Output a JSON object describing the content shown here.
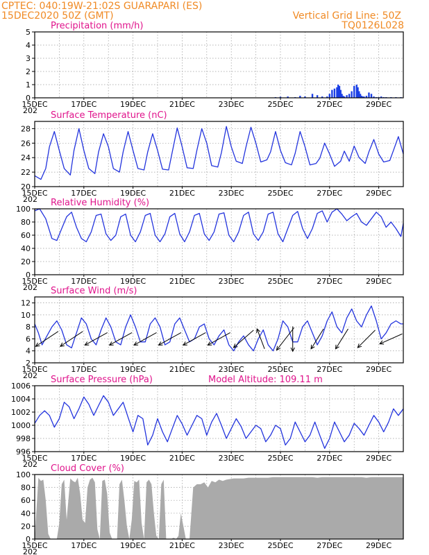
{
  "header": {
    "station_line": "CPTEC:   040:19W-21:02S   GUARAPARI (ES)",
    "datetime": "15DEC2020 50Z (GMT)",
    "grid_note": "Vertical Grid Line: 50Z",
    "model_code": "TQ0126L028"
  },
  "colors": {
    "header_text": "#f08a24",
    "panel_title": "#e0148c",
    "series_line": "#2233dd",
    "precip_bar": "#1a3fe6",
    "cloud_fill": "#aaaaaa",
    "wind_arrow": "#000000"
  },
  "x_tick_labels": [
    "15DEC",
    "17DEC",
    "19DEC",
    "21DEC",
    "23DEC",
    "25DEC",
    "27DEC",
    "29DEC"
  ],
  "year_stub": "202",
  "chart_data": [
    {
      "id": "precip",
      "type": "bar",
      "title": "Precipitation (mm/h)",
      "ylim": [
        0,
        5
      ],
      "yticks": [
        0,
        1,
        2,
        3,
        4,
        5
      ],
      "x_range_days": [
        0,
        15
      ],
      "grid": "dotted",
      "x": [
        9.8,
        10.0,
        10.3,
        10.6,
        10.8,
        11.0,
        11.3,
        11.5,
        11.7,
        11.9,
        12.0,
        12.1,
        12.2,
        12.3,
        12.35,
        12.4,
        12.45,
        12.5,
        12.55,
        12.6,
        12.7,
        12.8,
        12.9,
        13.0,
        13.1,
        13.15,
        13.2,
        13.25,
        13.3,
        13.35,
        13.4,
        13.5,
        13.6,
        13.7,
        13.8,
        13.9,
        14.0,
        14.1,
        14.2,
        14.3,
        14.5,
        14.7,
        14.9
      ],
      "values": [
        0.05,
        0.08,
        0.1,
        0.05,
        0.15,
        0.1,
        0.3,
        0.2,
        0.1,
        0.1,
        0.3,
        0.6,
        0.7,
        0.8,
        1.0,
        0.9,
        0.6,
        0.3,
        0.15,
        0.1,
        0.2,
        0.3,
        0.5,
        0.9,
        1.0,
        0.8,
        0.5,
        0.3,
        0.15,
        0.1,
        0.1,
        0.15,
        0.4,
        0.3,
        0.1,
        0.05,
        0.05,
        0.1,
        0.05,
        0.05,
        0.05,
        0.05,
        0.05
      ]
    },
    {
      "id": "temperature",
      "type": "line",
      "title": "Surface Temperature (nC)",
      "ylim": [
        20,
        29
      ],
      "yticks": [
        20,
        22,
        24,
        26,
        28
      ],
      "x_range_days": [
        0,
        15
      ],
      "grid": "dotted",
      "x": [
        0,
        0.25,
        0.45,
        0.6,
        0.8,
        1.0,
        1.2,
        1.45,
        1.6,
        1.8,
        2.0,
        2.2,
        2.45,
        2.6,
        2.8,
        3.0,
        3.2,
        3.45,
        3.6,
        3.8,
        4.0,
        4.2,
        4.45,
        4.6,
        4.8,
        5.0,
        5.2,
        5.45,
        5.6,
        5.8,
        6.0,
        6.2,
        6.45,
        6.6,
        6.8,
        7.0,
        7.2,
        7.45,
        7.6,
        7.8,
        8.0,
        8.2,
        8.45,
        8.6,
        8.8,
        9.0,
        9.2,
        9.45,
        9.6,
        9.8,
        10.0,
        10.2,
        10.45,
        10.6,
        10.8,
        11.0,
        11.2,
        11.45,
        11.6,
        11.8,
        12.0,
        12.2,
        12.45,
        12.6,
        12.8,
        13.0,
        13.2,
        13.45,
        13.6,
        13.8,
        14.0,
        14.2,
        14.45,
        14.6,
        14.8,
        15.0
      ],
      "values": [
        21.5,
        21.0,
        22.5,
        25.5,
        27.6,
        25.0,
        22.5,
        21.6,
        25.0,
        28.0,
        25.0,
        22.5,
        21.8,
        24.8,
        27.3,
        25.5,
        22.5,
        22.0,
        24.8,
        27.6,
        25.0,
        22.5,
        22.3,
        24.8,
        27.3,
        25.0,
        22.4,
        22.3,
        24.8,
        28.1,
        25.5,
        22.6,
        22.5,
        25.0,
        28.0,
        26.0,
        22.9,
        22.7,
        24.7,
        28.3,
        25.5,
        23.5,
        23.2,
        25.5,
        28.2,
        26.0,
        23.4,
        23.7,
        24.8,
        27.6,
        25.0,
        23.3,
        23.0,
        24.6,
        27.6,
        25.5,
        23.0,
        23.2,
        23.9,
        26.0,
        24.5,
        22.8,
        23.5,
        24.9,
        23.5,
        25.6,
        24.0,
        23.2,
        24.8,
        26.5,
        24.5,
        23.4,
        23.6,
        25.0,
        26.9,
        24.5
      ]
    },
    {
      "id": "humidity",
      "type": "line",
      "title": "Relative Humidity (%)",
      "ylim": [
        0,
        100
      ],
      "yticks": [
        0,
        20,
        40,
        60,
        80,
        100
      ],
      "x_range_days": [
        0,
        15
      ],
      "grid": "dotted",
      "x": [
        0,
        0.2,
        0.45,
        0.7,
        0.9,
        1.1,
        1.3,
        1.5,
        1.7,
        1.9,
        2.1,
        2.3,
        2.5,
        2.7,
        2.9,
        3.1,
        3.3,
        3.5,
        3.7,
        3.9,
        4.1,
        4.3,
        4.5,
        4.7,
        4.9,
        5.1,
        5.3,
        5.5,
        5.7,
        5.9,
        6.1,
        6.3,
        6.5,
        6.7,
        6.9,
        7.1,
        7.3,
        7.5,
        7.7,
        7.9,
        8.1,
        8.3,
        8.5,
        8.7,
        8.9,
        9.1,
        9.3,
        9.5,
        9.7,
        9.9,
        10.1,
        10.3,
        10.5,
        10.7,
        10.9,
        11.1,
        11.3,
        11.5,
        11.7,
        11.9,
        12.1,
        12.3,
        12.5,
        12.7,
        12.9,
        13.1,
        13.3,
        13.5,
        13.7,
        13.9,
        14.1,
        14.3,
        14.5,
        14.7,
        14.9,
        15.0
      ],
      "values": [
        97,
        100,
        85,
        55,
        52,
        70,
        88,
        95,
        72,
        55,
        50,
        65,
        90,
        92,
        62,
        52,
        60,
        88,
        92,
        60,
        50,
        65,
        90,
        93,
        60,
        50,
        62,
        88,
        93,
        62,
        50,
        65,
        90,
        93,
        62,
        52,
        65,
        92,
        94,
        60,
        50,
        65,
        90,
        95,
        62,
        52,
        65,
        92,
        95,
        62,
        50,
        70,
        90,
        96,
        70,
        55,
        70,
        93,
        97,
        80,
        95,
        100,
        92,
        82,
        88,
        93,
        80,
        75,
        85,
        95,
        88,
        72,
        80,
        70,
        58,
        78
      ]
    },
    {
      "id": "wind",
      "type": "line",
      "title": "Surface Wind (m/s)",
      "ylim": [
        2,
        13
      ],
      "yticks": [
        2,
        4,
        6,
        8,
        10,
        12
      ],
      "x_range_days": [
        0,
        15
      ],
      "grid": "dotted",
      "x": [
        0,
        0.15,
        0.3,
        0.5,
        0.7,
        0.9,
        1.1,
        1.3,
        1.5,
        1.7,
        1.9,
        2.1,
        2.3,
        2.5,
        2.7,
        2.9,
        3.1,
        3.3,
        3.5,
        3.7,
        3.9,
        4.1,
        4.3,
        4.5,
        4.7,
        4.9,
        5.1,
        5.3,
        5.5,
        5.7,
        5.9,
        6.1,
        6.3,
        6.5,
        6.7,
        6.9,
        7.1,
        7.3,
        7.5,
        7.7,
        7.9,
        8.1,
        8.3,
        8.5,
        8.7,
        8.9,
        9.1,
        9.3,
        9.5,
        9.7,
        9.9,
        10.1,
        10.3,
        10.5,
        10.7,
        10.9,
        11.1,
        11.3,
        11.5,
        11.7,
        11.9,
        12.1,
        12.3,
        12.5,
        12.7,
        12.9,
        13.1,
        13.3,
        13.5,
        13.7,
        13.9,
        14.1,
        14.3,
        14.5,
        14.7,
        14.9,
        15.0
      ],
      "values": [
        8.5,
        7.0,
        5.0,
        6.5,
        8.0,
        9.0,
        7.5,
        5.0,
        4.5,
        7.0,
        9.5,
        8.5,
        6.0,
        5.0,
        7.5,
        9.5,
        8.0,
        5.5,
        5.0,
        8.0,
        10.0,
        8.0,
        5.5,
        5.5,
        8.5,
        9.5,
        8.0,
        5.0,
        5.5,
        8.5,
        9.5,
        7.5,
        5.5,
        6.0,
        8.0,
        8.5,
        6.0,
        5.0,
        6.5,
        7.5,
        5.0,
        4.0,
        5.5,
        6.5,
        5.0,
        4.0,
        6.0,
        7.5,
        5.0,
        4.0,
        6.0,
        9.0,
        8.0,
        5.5,
        5.5,
        8.0,
        9.0,
        7.0,
        5.0,
        6.5,
        9.0,
        10.5,
        8.0,
        7.0,
        9.5,
        11.0,
        9.0,
        8.0,
        10.0,
        11.5,
        9.0,
        6.0,
        7.0,
        8.5,
        9.0,
        8.5,
        8.5
      ],
      "wind_vectors": [
        {
          "day": 0.5,
          "dx": 0.9,
          "dy": 0.6
        },
        {
          "day": 1.5,
          "dx": 0.9,
          "dy": 0.6
        },
        {
          "day": 2.5,
          "dx": 0.9,
          "dy": 0.5
        },
        {
          "day": 3.5,
          "dx": 0.9,
          "dy": 0.5
        },
        {
          "day": 4.5,
          "dx": 0.9,
          "dy": 0.5
        },
        {
          "day": 5.5,
          "dx": 0.9,
          "dy": 0.5
        },
        {
          "day": 6.5,
          "dx": 0.9,
          "dy": 0.5
        },
        {
          "day": 7.5,
          "dx": 0.9,
          "dy": 0.5
        },
        {
          "day": 8.5,
          "dx": 0.8,
          "dy": 0.7
        },
        {
          "day": 9.2,
          "dx": 0.3,
          "dy": -0.8
        },
        {
          "day": 10.2,
          "dx": 0.7,
          "dy": 0.9
        },
        {
          "day": 10.5,
          "dx": 0.0,
          "dy": 1.0
        },
        {
          "day": 11.5,
          "dx": 0.5,
          "dy": 0.8
        },
        {
          "day": 12.5,
          "dx": 0.5,
          "dy": 0.8
        },
        {
          "day": 13.5,
          "dx": 0.7,
          "dy": 0.7
        },
        {
          "day": 14.5,
          "dx": 0.9,
          "dy": 0.4
        }
      ]
    },
    {
      "id": "pressure",
      "type": "line",
      "title": "Surface Pressure (hPa)",
      "annotation": "Model Altitude: 109.11 m",
      "ylim": [
        996,
        1006
      ],
      "yticks": [
        996,
        998,
        1000,
        1002,
        1004,
        1006
      ],
      "x_range_days": [
        0,
        15
      ],
      "grid": "dotted",
      "x": [
        0,
        0.2,
        0.4,
        0.6,
        0.8,
        1.0,
        1.2,
        1.4,
        1.6,
        1.8,
        2.0,
        2.2,
        2.4,
        2.6,
        2.8,
        3.0,
        3.2,
        3.4,
        3.6,
        3.8,
        4.0,
        4.2,
        4.4,
        4.6,
        4.8,
        5.0,
        5.2,
        5.4,
        5.6,
        5.8,
        6.0,
        6.2,
        6.4,
        6.6,
        6.8,
        7.0,
        7.2,
        7.4,
        7.6,
        7.8,
        8.0,
        8.2,
        8.4,
        8.6,
        8.8,
        9.0,
        9.2,
        9.4,
        9.6,
        9.8,
        10.0,
        10.2,
        10.4,
        10.6,
        10.8,
        11.0,
        11.2,
        11.4,
        11.6,
        11.8,
        12.0,
        12.2,
        12.4,
        12.6,
        12.8,
        13.0,
        13.2,
        13.4,
        13.6,
        13.8,
        14.0,
        14.2,
        14.4,
        14.6,
        14.8,
        15.0
      ],
      "values": [
        1000.3,
        1001.5,
        1002.2,
        1001.5,
        999.7,
        1001.0,
        1003.5,
        1002.8,
        1001.0,
        1002.5,
        1004.3,
        1003.2,
        1001.5,
        1003.0,
        1004.5,
        1003.5,
        1001.5,
        1002.5,
        1003.5,
        1001.2,
        999.0,
        1001.5,
        1001.0,
        997.0,
        998.5,
        1001.0,
        999.0,
        997.5,
        999.5,
        1001.5,
        1000.2,
        998.5,
        1000.0,
        1001.5,
        1001.0,
        998.5,
        1000.5,
        1001.8,
        1000.0,
        998.0,
        999.5,
        1001.0,
        999.8,
        998.0,
        999.0,
        1000.0,
        999.5,
        997.5,
        998.5,
        1000.0,
        999.5,
        997.0,
        998.0,
        1000.5,
        999.0,
        997.5,
        998.5,
        1000.5,
        998.5,
        996.5,
        998.0,
        1000.5,
        999.0,
        997.5,
        998.5,
        1000.3,
        999.5,
        998.5,
        1000.0,
        1001.5,
        1000.5,
        999.0,
        1000.5,
        1002.5,
        1001.5,
        1002.5
      ]
    },
    {
      "id": "cloud",
      "type": "area",
      "title": "Cloud Cover (%)",
      "ylim": [
        0,
        100
      ],
      "yticks": [
        0,
        20,
        40,
        60,
        80,
        100
      ],
      "x_range_days": [
        0,
        15
      ],
      "grid": "dotted",
      "x": [
        0,
        0.15,
        0.25,
        0.35,
        0.45,
        0.55,
        0.65,
        0.75,
        0.9,
        1.0,
        1.1,
        1.2,
        1.3,
        1.45,
        1.55,
        1.65,
        1.75,
        1.85,
        1.95,
        2.05,
        2.15,
        2.25,
        2.35,
        2.45,
        2.55,
        2.65,
        2.75,
        2.85,
        2.95,
        3.05,
        3.15,
        3.25,
        3.35,
        3.45,
        3.55,
        3.65,
        3.75,
        3.85,
        3.95,
        4.05,
        4.15,
        4.25,
        4.35,
        4.45,
        4.55,
        4.65,
        4.75,
        4.85,
        4.95,
        5.05,
        5.15,
        5.25,
        5.35,
        5.45,
        5.55,
        5.65,
        5.75,
        5.85,
        5.95,
        6.05,
        6.15,
        6.3,
        6.45,
        6.6,
        6.75,
        6.9,
        7.05,
        7.2,
        7.35,
        7.5,
        7.65,
        7.8,
        7.95,
        8.1,
        8.3,
        8.5,
        8.7,
        8.9,
        9.1,
        9.3,
        9.5,
        9.7,
        9.9,
        10.1,
        10.3,
        10.5,
        10.7,
        10.9,
        11.1,
        11.3,
        11.5,
        11.7,
        11.9,
        12.1,
        12.3,
        12.5,
        12.7,
        12.9,
        13.1,
        13.3,
        13.5,
        13.7,
        13.9,
        14.1,
        14.3,
        14.5,
        14.7,
        14.9,
        15.0
      ],
      "values": [
        0,
        95,
        90,
        92,
        60,
        8,
        0,
        0,
        0,
        25,
        85,
        92,
        30,
        94,
        90,
        88,
        95,
        70,
        30,
        25,
        80,
        92,
        95,
        88,
        15,
        0,
        90,
        92,
        70,
        10,
        0,
        0,
        0,
        85,
        92,
        60,
        20,
        0,
        30,
        90,
        88,
        92,
        25,
        0,
        88,
        92,
        85,
        40,
        5,
        0,
        85,
        92,
        0,
        0,
        0,
        2,
        0,
        5,
        40,
        20,
        0,
        0,
        80,
        85,
        85,
        88,
        80,
        90,
        88,
        92,
        90,
        92,
        93,
        94,
        94,
        94,
        95,
        95,
        95,
        95,
        95,
        96,
        96,
        96,
        96,
        96,
        96,
        96,
        96,
        96,
        95,
        96,
        96,
        96,
        96,
        96,
        96,
        96,
        96,
        96,
        95,
        96,
        96,
        96,
        96,
        96,
        96,
        96,
        96
      ]
    }
  ]
}
